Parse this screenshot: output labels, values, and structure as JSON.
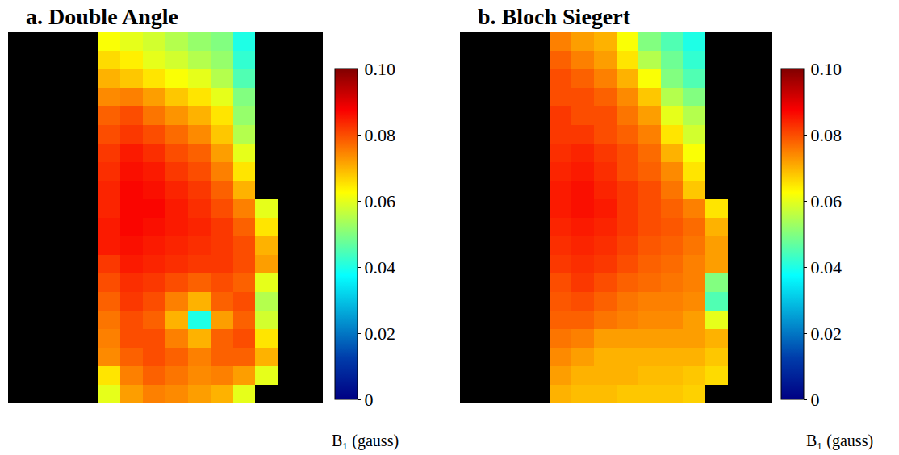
{
  "chart_data": [
    {
      "type": "heatmap",
      "title": "a. Double Angle",
      "colorbar_title": "B₁ (gauss)",
      "tick_labels": false,
      "zlim": [
        0,
        0.1
      ],
      "zticks": [
        0,
        0.02,
        0.04,
        0.06,
        0.08,
        {
          "value": 0.1,
          "label": "0.10"
        }
      ],
      "cells": [
        [
          null,
          null,
          null,
          null,
          0.062,
          0.06,
          0.058,
          0.055,
          0.052,
          0.05,
          0.04,
          null,
          null,
          null
        ],
        [
          null,
          null,
          null,
          null,
          0.066,
          0.064,
          0.06,
          0.058,
          0.055,
          0.052,
          0.042,
          null,
          null,
          null
        ],
        [
          null,
          null,
          null,
          null,
          0.07,
          0.068,
          0.065,
          0.062,
          0.06,
          0.055,
          0.045,
          null,
          null,
          null
        ],
        [
          null,
          null,
          null,
          null,
          0.074,
          0.075,
          0.072,
          0.068,
          0.065,
          0.06,
          0.05,
          null,
          null,
          null
        ],
        [
          null,
          null,
          null,
          null,
          0.078,
          0.08,
          0.076,
          0.073,
          0.07,
          0.065,
          0.052,
          null,
          null,
          null
        ],
        [
          null,
          null,
          null,
          null,
          0.08,
          0.082,
          0.08,
          0.077,
          0.074,
          0.068,
          0.055,
          null,
          null,
          null
        ],
        [
          null,
          null,
          null,
          null,
          0.082,
          0.085,
          0.083,
          0.08,
          0.078,
          0.072,
          0.06,
          null,
          null,
          null
        ],
        [
          null,
          null,
          null,
          null,
          0.083,
          0.086,
          0.085,
          0.082,
          0.08,
          0.075,
          0.065,
          null,
          null,
          null
        ],
        [
          null,
          null,
          null,
          null,
          0.084,
          0.087,
          0.086,
          0.084,
          0.082,
          0.078,
          0.07,
          null,
          null,
          null
        ],
        [
          null,
          null,
          null,
          null,
          0.084,
          0.087,
          0.087,
          0.085,
          0.083,
          0.08,
          0.075,
          0.06,
          null,
          null
        ],
        [
          null,
          null,
          null,
          null,
          0.085,
          0.087,
          0.086,
          0.085,
          0.084,
          0.082,
          0.078,
          0.065,
          null,
          null
        ],
        [
          null,
          null,
          null,
          null,
          0.085,
          0.086,
          0.085,
          0.084,
          0.083,
          0.082,
          0.08,
          0.07,
          null,
          null
        ],
        [
          null,
          null,
          null,
          null,
          0.082,
          0.085,
          0.084,
          0.083,
          0.082,
          0.082,
          0.08,
          0.072,
          null,
          null
        ],
        [
          null,
          null,
          null,
          null,
          0.08,
          0.083,
          0.082,
          0.08,
          0.078,
          0.08,
          0.078,
          0.06,
          null,
          null
        ],
        [
          null,
          null,
          null,
          null,
          0.078,
          0.082,
          0.08,
          0.075,
          0.07,
          0.078,
          0.08,
          0.055,
          null,
          null
        ],
        [
          null,
          null,
          null,
          null,
          0.076,
          0.08,
          0.078,
          0.07,
          0.04,
          0.072,
          0.078,
          0.058,
          null,
          null
        ],
        [
          null,
          null,
          null,
          null,
          0.075,
          0.08,
          0.08,
          0.075,
          0.07,
          0.078,
          0.08,
          0.065,
          null,
          null
        ],
        [
          null,
          null,
          null,
          null,
          0.074,
          0.078,
          0.08,
          0.078,
          0.075,
          0.078,
          0.078,
          0.07,
          null,
          null
        ],
        [
          null,
          null,
          null,
          null,
          0.065,
          0.075,
          0.078,
          0.076,
          0.074,
          0.075,
          0.072,
          0.06,
          null,
          null
        ],
        [
          null,
          null,
          null,
          null,
          0.06,
          0.072,
          0.075,
          0.074,
          0.072,
          0.07,
          0.06,
          null,
          null,
          null
        ]
      ]
    },
    {
      "type": "heatmap",
      "title": "b. Bloch Siegert",
      "colorbar_title": "B₁ (gauss)",
      "tick_labels": false,
      "zlim": [
        0,
        0.1
      ],
      "zticks": [
        0,
        0.02,
        0.04,
        0.06,
        0.08,
        {
          "value": 0.1,
          "label": "0.10"
        }
      ],
      "cells": [
        [
          null,
          null,
          null,
          null,
          0.075,
          0.072,
          0.07,
          0.062,
          0.05,
          0.045,
          0.04,
          null,
          null,
          null
        ],
        [
          null,
          null,
          null,
          null,
          0.078,
          0.075,
          0.072,
          0.065,
          0.055,
          0.048,
          0.042,
          null,
          null,
          null
        ],
        [
          null,
          null,
          null,
          null,
          0.08,
          0.078,
          0.075,
          0.07,
          0.062,
          0.05,
          0.045,
          null,
          null,
          null
        ],
        [
          null,
          null,
          null,
          null,
          0.08,
          0.08,
          0.078,
          0.074,
          0.068,
          0.055,
          0.05,
          null,
          null,
          null
        ],
        [
          null,
          null,
          null,
          null,
          0.082,
          0.08,
          0.08,
          0.076,
          0.072,
          0.06,
          0.055,
          null,
          null,
          null
        ],
        [
          null,
          null,
          null,
          null,
          0.082,
          0.082,
          0.08,
          0.078,
          0.075,
          0.065,
          0.058,
          null,
          null,
          null
        ],
        [
          null,
          null,
          null,
          null,
          0.083,
          0.084,
          0.082,
          0.08,
          0.077,
          0.07,
          0.062,
          null,
          null,
          null
        ],
        [
          null,
          null,
          null,
          null,
          0.084,
          0.085,
          0.083,
          0.08,
          0.078,
          0.074,
          0.065,
          null,
          null,
          null
        ],
        [
          null,
          null,
          null,
          null,
          0.085,
          0.086,
          0.084,
          0.082,
          0.08,
          0.076,
          0.068,
          null,
          null,
          null
        ],
        [
          null,
          null,
          null,
          null,
          0.085,
          0.086,
          0.085,
          0.082,
          0.08,
          0.078,
          0.075,
          0.065,
          null,
          null
        ],
        [
          null,
          null,
          null,
          null,
          0.084,
          0.085,
          0.084,
          0.082,
          0.08,
          0.079,
          0.077,
          0.07,
          null,
          null
        ],
        [
          null,
          null,
          null,
          null,
          0.083,
          0.084,
          0.083,
          0.081,
          0.079,
          0.078,
          0.076,
          0.072,
          null,
          null
        ],
        [
          null,
          null,
          null,
          null,
          0.082,
          0.083,
          0.082,
          0.08,
          0.078,
          0.077,
          0.075,
          0.072,
          null,
          null
        ],
        [
          null,
          null,
          null,
          null,
          0.08,
          0.082,
          0.08,
          0.078,
          0.077,
          0.076,
          0.075,
          0.05,
          null,
          null
        ],
        [
          null,
          null,
          null,
          null,
          0.079,
          0.08,
          0.078,
          0.076,
          0.075,
          0.075,
          0.074,
          0.045,
          null,
          null
        ],
        [
          null,
          null,
          null,
          null,
          0.078,
          0.078,
          0.076,
          0.075,
          0.074,
          0.074,
          0.072,
          0.06,
          null,
          null
        ],
        [
          null,
          null,
          null,
          null,
          0.076,
          0.075,
          0.072,
          0.072,
          0.072,
          0.072,
          0.072,
          0.07,
          null,
          null
        ],
        [
          null,
          null,
          null,
          null,
          0.074,
          0.072,
          0.07,
          0.07,
          0.07,
          0.07,
          0.07,
          0.068,
          null,
          null
        ],
        [
          null,
          null,
          null,
          null,
          0.072,
          0.07,
          0.07,
          0.07,
          0.069,
          0.069,
          0.068,
          0.066,
          null,
          null
        ],
        [
          null,
          null,
          null,
          null,
          0.07,
          0.069,
          0.069,
          0.068,
          0.068,
          0.068,
          0.067,
          null,
          null,
          null
        ]
      ]
    }
  ]
}
